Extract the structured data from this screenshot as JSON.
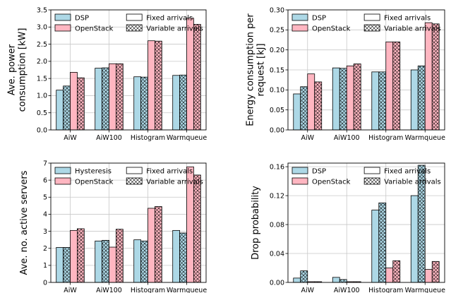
{
  "chart_data": [
    {
      "type": "bar",
      "ylabel": "Ave. power consumption [kW]",
      "categories": [
        "AiW",
        "AiW100",
        "Histogram",
        "Warmqueue"
      ],
      "ylim": [
        0,
        3.5
      ],
      "yticks": [
        "0.0",
        "0.5",
        "1.0",
        "1.5",
        "2.0",
        "2.5",
        "3.0",
        "3.5"
      ],
      "grid": true,
      "legend_position": "top-right",
      "legend": {
        "sys_a": "DSP",
        "sys_b": "OpenStack",
        "fixed": "Fixed arrivals",
        "variable": "Variable arrivals"
      },
      "series": [
        {
          "name": "DSP",
          "pattern": "Fixed arrivals",
          "color": "#add8e6",
          "values": [
            1.16,
            1.8,
            1.55,
            1.59
          ]
        },
        {
          "name": "DSP",
          "pattern": "Variable arrivals",
          "color": "#add8e6",
          "values": [
            1.28,
            1.81,
            1.54,
            1.6
          ]
        },
        {
          "name": "OpenStack",
          "pattern": "Fixed arrivals",
          "color": "#ffb6c1",
          "values": [
            1.68,
            1.93,
            2.6,
            3.26
          ]
        },
        {
          "name": "OpenStack",
          "pattern": "Variable arrivals",
          "color": "#ffb6c1",
          "values": [
            1.52,
            1.93,
            2.59,
            3.08
          ]
        }
      ]
    },
    {
      "type": "bar",
      "ylabel": "Energy consumption per request [kJ]",
      "categories": [
        "AiW",
        "AiW100",
        "Histogram",
        "Warmqueue"
      ],
      "ylim": [
        0,
        0.3
      ],
      "yticks": [
        "0.00",
        "0.05",
        "0.10",
        "0.15",
        "0.20",
        "0.25",
        "0.30"
      ],
      "grid": true,
      "legend_position": "top-right",
      "legend": {
        "sys_a": "DSP",
        "sys_b": "OpenStack",
        "fixed": "Fixed arrivals",
        "variable": "Variable arrivals"
      },
      "series": [
        {
          "name": "DSP",
          "pattern": "Fixed arrivals",
          "color": "#add8e6",
          "values": [
            0.09,
            0.155,
            0.145,
            0.15
          ]
        },
        {
          "name": "DSP",
          "pattern": "Variable arrivals",
          "color": "#add8e6",
          "values": [
            0.108,
            0.154,
            0.145,
            0.16
          ]
        },
        {
          "name": "OpenStack",
          "pattern": "Fixed arrivals",
          "color": "#ffb6c1",
          "values": [
            0.14,
            0.16,
            0.22,
            0.268
          ]
        },
        {
          "name": "OpenStack",
          "pattern": "Variable arrivals",
          "color": "#ffb6c1",
          "values": [
            0.12,
            0.165,
            0.22,
            0.265
          ]
        }
      ]
    },
    {
      "type": "bar",
      "ylabel": "Ave. no. active servers",
      "categories": [
        "AiW",
        "AiW100",
        "Histogram",
        "Warmqueue"
      ],
      "ylim": [
        0,
        7
      ],
      "yticks": [
        "0",
        "1",
        "2",
        "3",
        "4",
        "5",
        "6",
        "7"
      ],
      "grid": true,
      "legend_position": "top-right",
      "legend": {
        "sys_a": "Hysteresis",
        "sys_b": "OpenStack",
        "fixed": "Fixed arrivals",
        "variable": "Variable arrivals"
      },
      "series": [
        {
          "name": "Hysteresis",
          "pattern": "Fixed arrivals",
          "color": "#add8e6",
          "values": [
            2.05,
            2.43,
            2.5,
            3.05
          ]
        },
        {
          "name": "Hysteresis",
          "pattern": "Variable arrivals",
          "color": "#add8e6",
          "values": [
            2.05,
            2.47,
            2.43,
            2.9
          ]
        },
        {
          "name": "OpenStack",
          "pattern": "Fixed arrivals",
          "color": "#ffb6c1",
          "values": [
            3.05,
            2.07,
            4.35,
            6.78
          ]
        },
        {
          "name": "OpenStack",
          "pattern": "Variable arrivals",
          "color": "#ffb6c1",
          "values": [
            3.15,
            3.12,
            4.45,
            6.3
          ]
        }
      ]
    },
    {
      "type": "bar",
      "ylabel": "Drop probability",
      "categories": [
        "AiW",
        "AiW100",
        "Histogram",
        "Warmqueue"
      ],
      "ylim": [
        0,
        0.165
      ],
      "yticks": [
        "0.00",
        "0.04",
        "0.08",
        "0.12",
        "0.16"
      ],
      "ytick_values": [
        0,
        0.04,
        0.08,
        0.12,
        0.16
      ],
      "grid": true,
      "legend_position": "top-right",
      "legend": {
        "sys_a": "DSP",
        "sys_b": "OpenStack",
        "fixed": "Fixed arrivals",
        "variable": "Variable arrivals"
      },
      "series": [
        {
          "name": "DSP",
          "pattern": "Fixed arrivals",
          "color": "#add8e6",
          "values": [
            0.006,
            0.007,
            0.1,
            0.12
          ]
        },
        {
          "name": "DSP",
          "pattern": "Variable arrivals",
          "color": "#add8e6",
          "values": [
            0.016,
            0.004,
            0.11,
            0.162
          ]
        },
        {
          "name": "OpenStack",
          "pattern": "Fixed arrivals",
          "color": "#ffb6c1",
          "values": [
            0.001,
            0.001,
            0.02,
            0.018
          ]
        },
        {
          "name": "OpenStack",
          "pattern": "Variable arrivals",
          "color": "#ffb6c1",
          "values": [
            0.001,
            0.001,
            0.03,
            0.029
          ]
        }
      ]
    }
  ]
}
